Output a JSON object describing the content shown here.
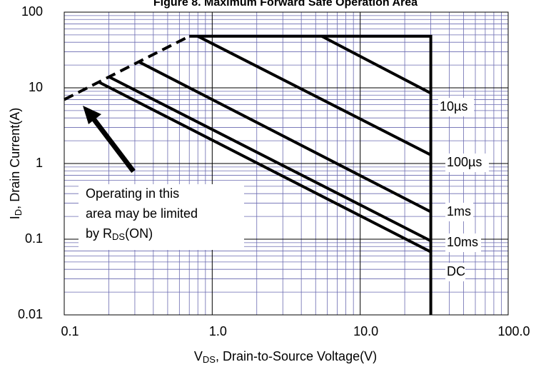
{
  "chart_data": {
    "type": "line",
    "title": "Figure 8. Maximum Forward Safe Operation Area",
    "x_label": [
      "V",
      "DS",
      ", Drain-to-Source Voltage(V)"
    ],
    "y_label": [
      "I",
      "D",
      ", Drain Current(A)"
    ],
    "annotation": [
      "Operating in this",
      "area may be limited",
      "by R",
      "DS",
      "(ON)"
    ],
    "log_x": true,
    "log_y": true,
    "grid": true,
    "xlim": [
      0.1,
      100
    ],
    "ylim": [
      0.01,
      100
    ],
    "xticks": [
      0.1,
      {
        "value": 1,
        "label": "1.0"
      },
      {
        "value": 10,
        "label": "10.0"
      },
      {
        "value": 100,
        "label": "100.0"
      }
    ],
    "yticks": [
      0.01,
      0.1,
      1,
      10,
      100
    ],
    "series": [
      {
        "color": "#000000",
        "dashed": true,
        "x": [
          0.1,
          0.7
        ],
        "values": [
          7,
          48
        ]
      },
      {
        "color": "#000000",
        "x": [
          0.7,
          30,
          30
        ],
        "values": [
          48,
          48,
          0.01
        ]
      },
      {
        "name": "10µs",
        "color": "#000000",
        "x": [
          5.5,
          30
        ],
        "values": [
          48,
          8.5
        ]
      },
      {
        "name": "100µs",
        "color": "#000000",
        "x": [
          0.8,
          30
        ],
        "values": [
          48,
          1.3
        ]
      },
      {
        "name": "1ms",
        "color": "#000000",
        "x": [
          0.32,
          30
        ],
        "values": [
          22,
          0.23
        ]
      },
      {
        "name": "10ms",
        "color": "#000000",
        "x": [
          0.2,
          30
        ],
        "values": [
          14,
          0.095
        ]
      },
      {
        "name": "DC",
        "color": "#000000",
        "x": [
          0.17,
          30
        ],
        "values": [
          12,
          0.068
        ]
      }
    ]
  }
}
